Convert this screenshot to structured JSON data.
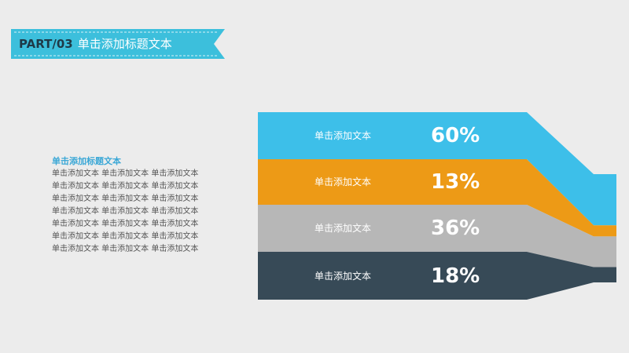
{
  "header": {
    "part": "PART/03",
    "title": "单击添加标题文本",
    "ribbon_color": "#3cbfdc"
  },
  "sidebar": {
    "heading": "单击添加标题文本",
    "lines": [
      "单击添加文本 单击添加文本 单击添加文本",
      "单击添加文本 单击添加文本 单击添加文本",
      "单击添加文本 单击添加文本 单击添加文本",
      "单击添加文本 单击添加文本 单击添加文本",
      "单击添加文本 单击添加文本 单击添加文本",
      "单击添加文本 单击添加文本 单击添加文本",
      "单击添加文本 单击添加文本 单击添加文本"
    ]
  },
  "chart_data": {
    "type": "bar",
    "categories": [
      "单击添加文本",
      "单击添加文本",
      "单击添加文本",
      "单击添加文本"
    ],
    "values": [
      60,
      13,
      36,
      18
    ],
    "value_labels": [
      "60%",
      "13%",
      "36%",
      "18%"
    ],
    "colors": [
      "#3dbfe9",
      "#ed9a16",
      "#b7b7b7",
      "#374a57"
    ]
  }
}
